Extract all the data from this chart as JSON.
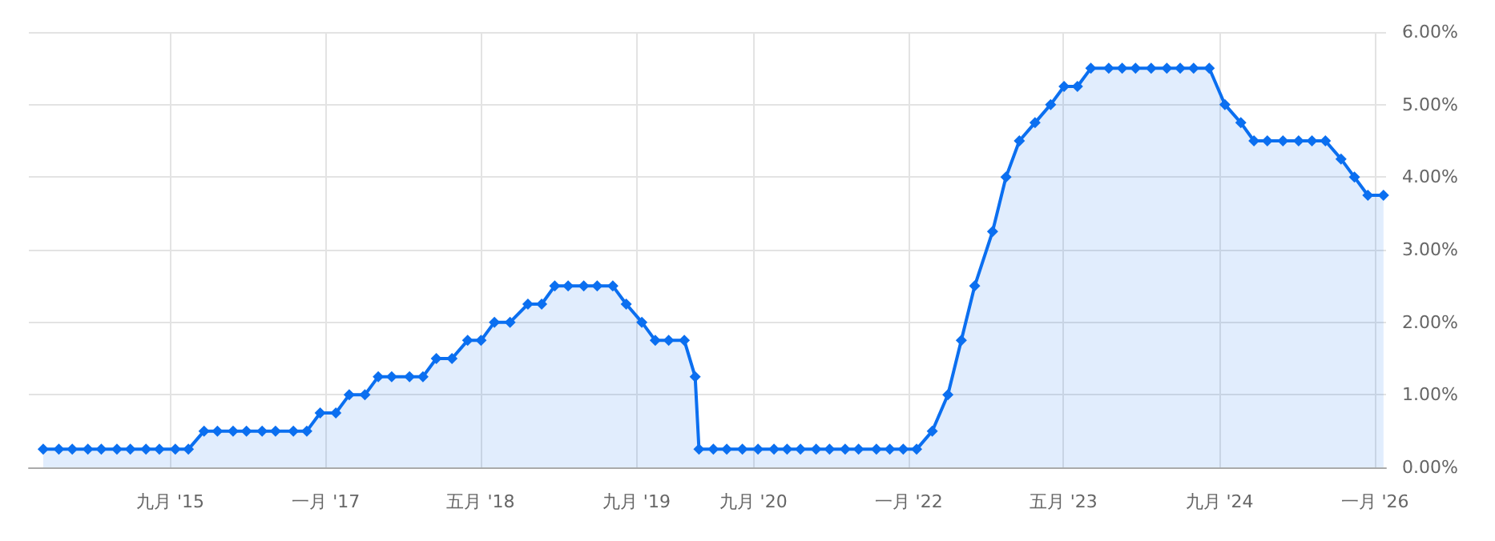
{
  "chart_data": {
    "type": "area",
    "x": [
      "2014-07-30",
      "2014-09-17",
      "2014-10-29",
      "2014-12-17",
      "2015-01-28",
      "2015-03-18",
      "2015-04-29",
      "2015-06-17",
      "2015-07-29",
      "2015-09-17",
      "2015-10-28",
      "2015-12-16",
      "2016-01-27",
      "2016-03-16",
      "2016-04-27",
      "2016-06-15",
      "2016-07-27",
      "2016-09-21",
      "2016-11-02",
      "2016-12-14",
      "2017-02-01",
      "2017-03-15",
      "2017-05-03",
      "2017-06-14",
      "2017-07-26",
      "2017-09-20",
      "2017-11-01",
      "2017-12-13",
      "2018-01-31",
      "2018-03-21",
      "2018-05-02",
      "2018-06-13",
      "2018-08-01",
      "2018-09-26",
      "2018-11-08",
      "2018-12-19",
      "2019-01-30",
      "2019-03-20",
      "2019-05-01",
      "2019-06-19",
      "2019-07-31",
      "2019-09-18",
      "2019-10-30",
      "2019-12-11",
      "2020-01-29",
      "2020-03-03",
      "2020-03-15",
      "2020-04-29",
      "2020-06-10",
      "2020-07-29",
      "2020-09-16",
      "2020-11-05",
      "2020-12-16",
      "2021-01-27",
      "2021-03-17",
      "2021-04-28",
      "2021-06-16",
      "2021-07-28",
      "2021-09-22",
      "2021-11-03",
      "2021-12-15",
      "2022-01-26",
      "2022-03-16",
      "2022-05-04",
      "2022-06-15",
      "2022-07-27",
      "2022-09-21",
      "2022-11-02",
      "2022-12-14",
      "2023-02-01",
      "2023-03-22",
      "2023-05-03",
      "2023-06-14",
      "2023-07-26",
      "2023-09-20",
      "2023-11-01",
      "2023-12-13",
      "2024-01-31",
      "2024-03-20",
      "2024-05-01",
      "2024-06-12",
      "2024-07-31",
      "2024-09-18",
      "2024-11-07",
      "2024-12-18",
      "2025-01-29",
      "2025-03-19",
      "2025-05-07",
      "2025-06-18",
      "2025-07-30",
      "2025-09-17",
      "2025-10-29",
      "2025-12-10",
      "2026-01-28"
    ],
    "series": [
      {
        "color": "#0b6ff0",
        "values": [
          0.25,
          0.25,
          0.25,
          0.25,
          0.25,
          0.25,
          0.25,
          0.25,
          0.25,
          0.25,
          0.25,
          0.5,
          0.5,
          0.5,
          0.5,
          0.5,
          0.5,
          0.5,
          0.5,
          0.75,
          0.75,
          1.0,
          1.0,
          1.25,
          1.25,
          1.25,
          1.25,
          1.5,
          1.5,
          1.75,
          1.75,
          2.0,
          2.0,
          2.25,
          2.25,
          2.5,
          2.5,
          2.5,
          2.5,
          2.5,
          2.25,
          2.0,
          1.75,
          1.75,
          1.75,
          1.25,
          0.25,
          0.25,
          0.25,
          0.25,
          0.25,
          0.25,
          0.25,
          0.25,
          0.25,
          0.25,
          0.25,
          0.25,
          0.25,
          0.25,
          0.25,
          0.25,
          0.5,
          1.0,
          1.75,
          2.5,
          3.25,
          4.0,
          4.5,
          4.75,
          5.0,
          5.25,
          5.25,
          5.5,
          5.5,
          5.5,
          5.5,
          5.5,
          5.5,
          5.5,
          5.5,
          5.5,
          5.0,
          4.75,
          4.5,
          4.5,
          4.5,
          4.5,
          4.5,
          4.5,
          4.25,
          4.0,
          3.75,
          3.75
        ]
      }
    ],
    "xlim": [
      "2014-06-15",
      "2026-02-05"
    ],
    "xticks": [
      {
        "value": "2015-09-01",
        "label": "九月 '15"
      },
      {
        "value": "2017-01-01",
        "label": "一月 '17"
      },
      {
        "value": "2018-05-01",
        "label": "五月 '18"
      },
      {
        "value": "2019-09-01",
        "label": "九月 '19"
      },
      {
        "value": "2020-09-01",
        "label": "九月 '20"
      },
      {
        "value": "2022-01-01",
        "label": "一月 '22"
      },
      {
        "value": "2023-05-01",
        "label": "五月 '23"
      },
      {
        "value": "2024-09-01",
        "label": "九月 '24"
      },
      {
        "value": "2026-01-01",
        "label": "一月 '26"
      }
    ],
    "ylim": [
      0,
      6
    ],
    "yticks": [
      {
        "value": 0,
        "label": "0.00%"
      },
      {
        "value": 1,
        "label": "1.00%"
      },
      {
        "value": 2,
        "label": "2.00%"
      },
      {
        "value": 3,
        "label": "3.00%"
      },
      {
        "value": 4,
        "label": "4.00%"
      },
      {
        "value": 5,
        "label": "5.00%"
      },
      {
        "value": 6,
        "label": "6.00%"
      }
    ],
    "grid": true,
    "marker": "diamond",
    "line_style": "solid"
  }
}
